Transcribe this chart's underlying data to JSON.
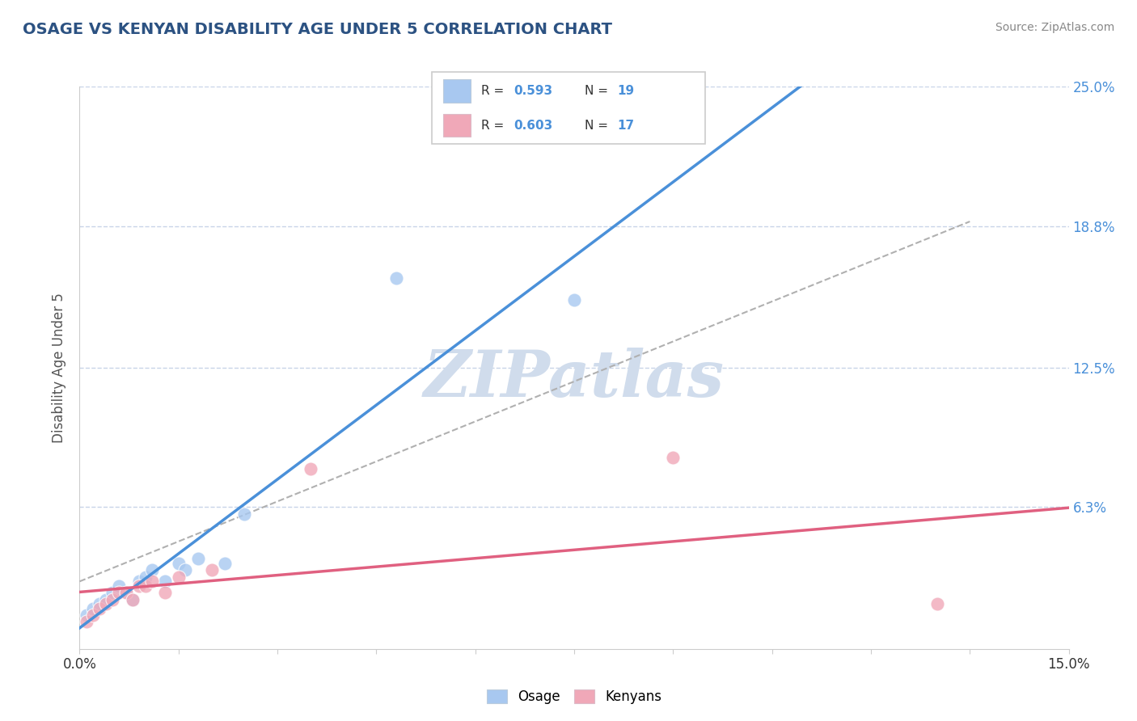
{
  "title": "OSAGE VS KENYAN DISABILITY AGE UNDER 5 CORRELATION CHART",
  "source_text": "Source: ZipAtlas.com",
  "ylabel": "Disability Age Under 5",
  "xlim": [
    0.0,
    0.15
  ],
  "ylim": [
    0.0,
    0.25
  ],
  "ytick_positions": [
    0.063,
    0.125,
    0.188,
    0.25
  ],
  "ytick_labels": [
    "6.3%",
    "12.5%",
    "18.8%",
    "25.0%"
  ],
  "osage_color": "#a8c8f0",
  "kenyan_color": "#f0a8b8",
  "osage_line_color": "#4a90d9",
  "kenyan_line_color": "#e06080",
  "dashed_line_color": "#b0b0b0",
  "osage_R": 0.593,
  "osage_N": 19,
  "kenyan_R": 0.603,
  "kenyan_N": 17,
  "osage_x": [
    0.001,
    0.002,
    0.003,
    0.004,
    0.005,
    0.006,
    0.007,
    0.008,
    0.009,
    0.01,
    0.011,
    0.013,
    0.015,
    0.016,
    0.018,
    0.022,
    0.025,
    0.048,
    0.075
  ],
  "osage_y": [
    0.015,
    0.018,
    0.02,
    0.022,
    0.025,
    0.028,
    0.025,
    0.022,
    0.03,
    0.032,
    0.035,
    0.03,
    0.038,
    0.035,
    0.04,
    0.038,
    0.06,
    0.165,
    0.155
  ],
  "kenyan_x": [
    0.001,
    0.002,
    0.003,
    0.004,
    0.005,
    0.006,
    0.007,
    0.008,
    0.009,
    0.01,
    0.011,
    0.013,
    0.015,
    0.02,
    0.035,
    0.09,
    0.13
  ],
  "kenyan_y": [
    0.012,
    0.015,
    0.018,
    0.02,
    0.022,
    0.025,
    0.025,
    0.022,
    0.028,
    0.028,
    0.03,
    0.025,
    0.032,
    0.035,
    0.08,
    0.085,
    0.02
  ],
  "background_color": "#ffffff",
  "grid_color": "#c8d4e8",
  "title_color": "#2c5282",
  "watermark_text": "ZIPatlas",
  "watermark_color": "#d0dcec"
}
